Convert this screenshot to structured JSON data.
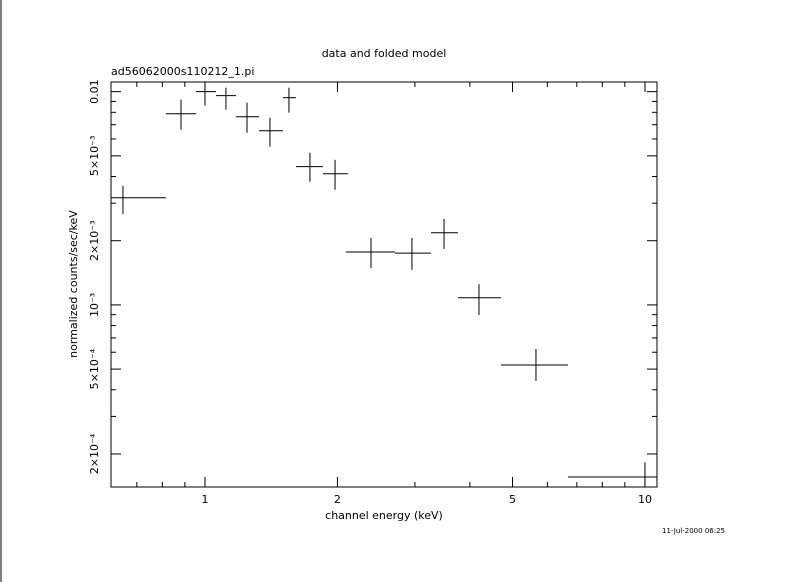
{
  "chart_data": {
    "type": "errorbar",
    "title": "data and folded model",
    "subtitle": "ad56062000s110212_1.pi",
    "x_label": "channel energy (keV)",
    "y_label": "normalized counts/sec/keV",
    "timestamp": "11-Jul-2000 06:25",
    "log_x": true,
    "log_y": true,
    "color": "#000000",
    "xlim": [
      0.6115,
      10.65
    ],
    "ylim": [
      0.00014,
      0.0111
    ],
    "xticks": [
      1,
      2,
      5,
      10
    ],
    "xminor_ticks": [
      0.7,
      0.8,
      0.9,
      3,
      4,
      6,
      7,
      8,
      9
    ],
    "yticks": [
      {
        "value": 0.01,
        "label": "0.01"
      },
      {
        "value": 0.005,
        "label": "5×10⁻³"
      },
      {
        "value": 0.002,
        "label": "2×10⁻³"
      },
      {
        "value": 0.001,
        "label": "10⁻³"
      },
      {
        "value": 0.0005,
        "label": "5×10⁻⁴"
      },
      {
        "value": 0.0002,
        "label": "2×10⁻⁴"
      }
    ],
    "yminor_ticks": [
      0.009,
      0.008,
      0.007,
      0.006,
      0.004,
      0.003,
      0.0009,
      0.0008,
      0.0007,
      0.0006,
      0.0004,
      0.0003
    ],
    "x": [
      0.651,
      0.882,
      1.0,
      1.116,
      1.246,
      1.405,
      1.552,
      1.732,
      1.975,
      2.384,
      2.954,
      3.494,
      4.195,
      5.653,
      10.0
    ],
    "x_low": [
      0.6115,
      0.815,
      0.954,
      1.059,
      1.176,
      1.327,
      1.504,
      1.61,
      1.854,
      2.091,
      2.703,
      3.263,
      3.758,
      4.706,
      6.683
    ],
    "x_high": [
      0.815,
      0.954,
      1.059,
      1.176,
      1.327,
      1.504,
      1.61,
      1.854,
      2.113,
      2.703,
      3.263,
      3.758,
      4.706,
      6.683,
      10.65
    ],
    "values": [
      0.00318,
      0.00788,
      0.01,
      0.00958,
      0.00763,
      0.00656,
      0.00937,
      0.00445,
      0.00412,
      0.00177,
      0.00175,
      0.00218,
      0.00108,
      0.000523,
      0.000156
    ],
    "y_low": [
      0.00267,
      0.00663,
      0.0086,
      0.00823,
      0.00642,
      0.00552,
      0.00797,
      0.00378,
      0.00347,
      0.00149,
      0.00146,
      0.00183,
      0.000897,
      0.00044,
      0.00014
    ],
    "y_high": [
      0.00362,
      0.00917,
      0.0111,
      0.01044,
      0.00888,
      0.00755,
      0.01044,
      0.00517,
      0.00479,
      0.00206,
      0.00206,
      0.00253,
      0.00125,
      0.000621,
      0.000183
    ]
  }
}
